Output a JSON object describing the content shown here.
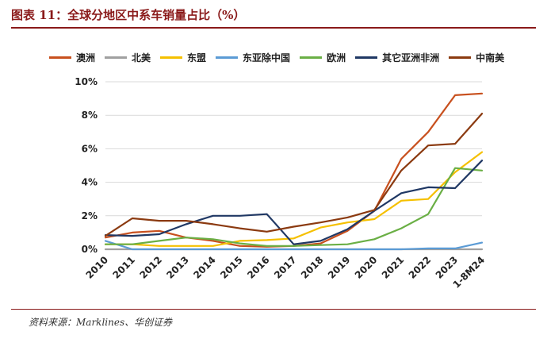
{
  "title": "图表 11：全球分地区中系车销量占比（%）",
  "source": "资料来源：Marklines、华创证券",
  "chart_data": {
    "type": "line",
    "categories": [
      "2010",
      "2011",
      "2012",
      "2013",
      "2014",
      "2015",
      "2016",
      "2017",
      "2018",
      "2019",
      "2020",
      "2021",
      "2022",
      "2023",
      "1-8M24"
    ],
    "y_ticks": [
      "0%",
      "2%",
      "4%",
      "6%",
      "8%",
      "10%"
    ],
    "ylim": [
      0,
      10
    ],
    "grid": true,
    "legend_position": "top",
    "series": [
      {
        "name": "澳洲",
        "color": "#C8501E",
        "values": [
          0.7,
          1.0,
          1.1,
          0.7,
          0.5,
          0.2,
          0.15,
          0.2,
          0.35,
          1.1,
          2.3,
          5.4,
          7.0,
          9.2,
          9.3
        ]
      },
      {
        "name": "北美",
        "color": "#A0A0A0",
        "values": [
          0.0,
          0.0,
          0.0,
          0.0,
          0.0,
          0.0,
          0.0,
          0.0,
          0.0,
          0.0,
          0.0,
          0.0,
          0.0,
          0.0,
          0.0
        ]
      },
      {
        "name": "东盟",
        "color": "#F5C000",
        "values": [
          0.3,
          0.3,
          0.2,
          0.2,
          0.2,
          0.5,
          0.55,
          0.65,
          1.3,
          1.6,
          1.8,
          2.9,
          3.0,
          4.6,
          5.8
        ]
      },
      {
        "name": "东亚除中国",
        "color": "#5B9BD5",
        "values": [
          0.5,
          0.0,
          0.0,
          0.0,
          0.0,
          0.0,
          0.0,
          0.0,
          0.0,
          0.0,
          0.0,
          0.0,
          0.05,
          0.05,
          0.4
        ]
      },
      {
        "name": "欧洲",
        "color": "#6AAF45",
        "values": [
          0.3,
          0.3,
          0.5,
          0.7,
          0.6,
          0.35,
          0.2,
          0.2,
          0.25,
          0.3,
          0.6,
          1.25,
          2.1,
          4.85,
          4.7
        ]
      },
      {
        "name": "其它亚洲非洲",
        "color": "#203864",
        "values": [
          0.85,
          0.8,
          0.9,
          1.5,
          2.0,
          2.0,
          2.1,
          0.3,
          0.5,
          1.2,
          2.3,
          3.35,
          3.7,
          3.65,
          5.3
        ]
      },
      {
        "name": "中南美",
        "color": "#8B3A10",
        "values": [
          0.8,
          1.85,
          1.7,
          1.7,
          1.5,
          1.25,
          1.05,
          1.35,
          1.6,
          1.9,
          2.35,
          4.7,
          6.2,
          6.3,
          8.1
        ]
      }
    ]
  }
}
